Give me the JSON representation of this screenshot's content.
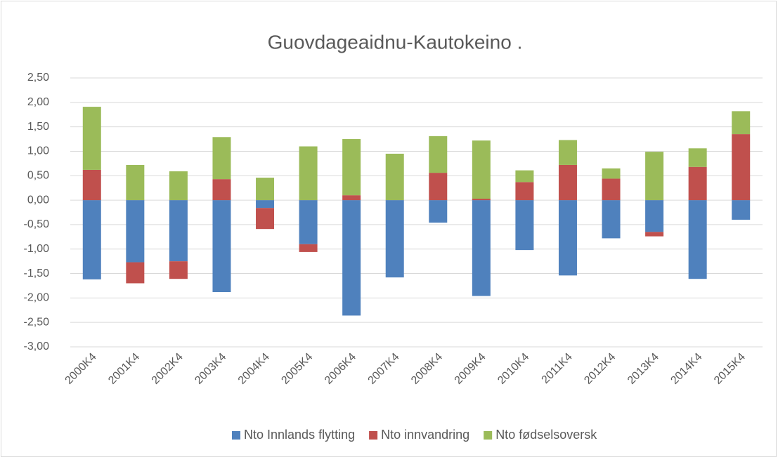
{
  "chart_data": {
    "type": "stacked_bar",
    "title": "Guovdageaidnu-Kautokeino .",
    "categories": [
      "2000K4",
      "2001K4",
      "2002K4",
      "2003K4",
      "2004K4",
      "2005K4",
      "2006K4",
      "2007K4",
      "2008K4",
      "2009K4",
      "2010K4",
      "2011K4",
      "2012K4",
      "2013K4",
      "2014K4",
      "2015K4"
    ],
    "series": [
      {
        "name": "Nto Innlands flytting",
        "color": "#4f81bd",
        "values": [
          -1.62,
          -1.27,
          -1.25,
          -1.88,
          -0.16,
          -0.9,
          -2.36,
          -1.58,
          -0.46,
          -1.96,
          -1.02,
          -1.54,
          -0.78,
          -0.65,
          -1.61,
          -0.4
        ]
      },
      {
        "name": "Nto innvandring",
        "color": "#c0504d",
        "values": [
          0.62,
          -0.43,
          -0.36,
          0.43,
          -0.43,
          -0.16,
          0.1,
          0,
          0.56,
          0.03,
          0.37,
          0.72,
          0.44,
          -0.09,
          0.68,
          1.35
        ]
      },
      {
        "name": "Nto fødselsoversk",
        "color": "#9bbb59",
        "values": [
          1.29,
          0.72,
          0.59,
          0.86,
          0.46,
          1.1,
          1.15,
          0.95,
          0.75,
          1.19,
          0.24,
          0.51,
          0.21,
          0.99,
          0.38,
          0.47
        ]
      }
    ],
    "ylim": [
      -3,
      2.5
    ],
    "yticks": [
      {
        "value": -3,
        "label": "-3,00"
      },
      {
        "value": -2.5,
        "label": "-2,50"
      },
      {
        "value": -2,
        "label": "-2,00"
      },
      {
        "value": -1.5,
        "label": "-1,50"
      },
      {
        "value": -1,
        "label": "-1,00"
      },
      {
        "value": -0.5,
        "label": "-0,50"
      },
      {
        "value": 0,
        "label": "0,00"
      },
      {
        "value": 0.5,
        "label": "0,50"
      },
      {
        "value": 1,
        "label": "1,00"
      },
      {
        "value": 1.5,
        "label": "1,50"
      },
      {
        "value": 2,
        "label": "2,00"
      },
      {
        "value": 2.5,
        "label": "2,50"
      }
    ],
    "grid": true,
    "legend": "bottom"
  }
}
